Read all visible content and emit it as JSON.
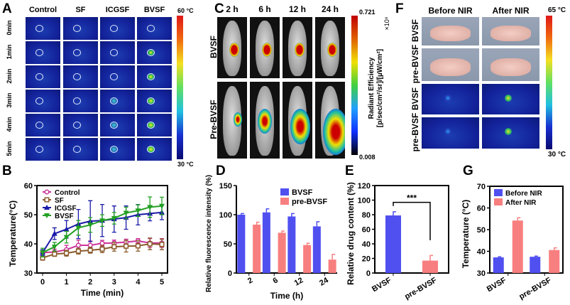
{
  "panels": {
    "A": {
      "label": "A",
      "columns": [
        "Control",
        "SF",
        "ICGSF",
        "BVSF"
      ],
      "rows": [
        "0min",
        "1min",
        "2min",
        "3min",
        "4min",
        "5min"
      ],
      "colorbar_max": "60 °C",
      "colorbar_min": "30 °C"
    },
    "C": {
      "label": "C",
      "columns": [
        "2 h",
        "6 h",
        "12 h",
        "24 h"
      ],
      "rows": [
        "BVSF",
        "Pre-BVSF"
      ],
      "colorbar_max": "0.721",
      "colorbar_min": "0.008",
      "colorbar_title": "Radiant Efficiency",
      "colorbar_units": "[p/sec/cm²/sr]/[µW/cm²]",
      "colorbar_scale": "×10⁸"
    },
    "F": {
      "label": "F",
      "columns": [
        "Before NIR",
        "After NIR"
      ],
      "rows": [
        "BVSF",
        "pre-BVSF",
        "BVSF",
        "pre-BVSF"
      ],
      "colorbar_max": "65 °C",
      "colorbar_min": "30 °C"
    }
  },
  "chart_data": [
    {
      "id": "B",
      "label": "B",
      "type": "line",
      "xlabel": "Time (min)",
      "ylabel": "Temperature(°C)",
      "xlim": [
        0,
        5
      ],
      "ylim": [
        30,
        60
      ],
      "xticks": [
        "0",
        "1",
        "2",
        "3",
        "4",
        "5"
      ],
      "yticks": [
        "30",
        "40",
        "50",
        "60"
      ],
      "legend_position": "top-left",
      "x": [
        0,
        0.5,
        1,
        1.5,
        2,
        2.5,
        3,
        3.5,
        4,
        4.5,
        5
      ],
      "series": [
        {
          "name": "Control",
          "color": "#cc3399",
          "marker": "circle",
          "values": [
            37,
            37.2,
            38,
            39.5,
            39.5,
            40.2,
            40.3,
            40.6,
            41,
            40.3,
            40.3
          ],
          "errors": [
            1,
            1,
            1.5,
            1.8,
            1.5,
            1,
            1,
            1,
            0.8,
            1.5,
            1.5
          ]
        },
        {
          "name": "SF",
          "color": "#8b5a2b",
          "marker": "square",
          "values": [
            35.2,
            36.5,
            36.8,
            37.5,
            37.8,
            38.2,
            39,
            39.2,
            39.3,
            40,
            39.8
          ],
          "errors": [
            0.8,
            0.8,
            1,
            1,
            1,
            1.2,
            1.5,
            2,
            1.8,
            2,
            1.8
          ]
        },
        {
          "name": "ICGSF",
          "color": "#1a1aa8",
          "marker": "triangle-up",
          "values": [
            37,
            43.5,
            45,
            46.8,
            47.8,
            48,
            48.5,
            49,
            50,
            50.4,
            50.8
          ],
          "errors": [
            1,
            2,
            3,
            5,
            7,
            5.5,
            4.5,
            4,
            3.5,
            2.5,
            2.5
          ]
        },
        {
          "name": "BVSF",
          "color": "#22a022",
          "marker": "triangle-down",
          "values": [
            37,
            39,
            42.3,
            45.5,
            46.5,
            48,
            48.8,
            50.6,
            51.4,
            52.6,
            53
          ],
          "errors": [
            1.5,
            1.5,
            2,
            2.5,
            2.5,
            2,
            2,
            2,
            2,
            3.5,
            3
          ]
        }
      ]
    },
    {
      "id": "D",
      "label": "D",
      "type": "bar",
      "xlabel": "Time (h)",
      "ylabel": "Relative fluorescence intensity (%)",
      "ylim": [
        0,
        150
      ],
      "yticks": [
        "0",
        "50",
        "100",
        "150"
      ],
      "categories": [
        "2",
        "6",
        "12",
        "24"
      ],
      "legend_position": "top-right",
      "series": [
        {
          "name": "BVSF",
          "color": "#5050f0",
          "values": [
            100,
            104,
            97,
            80
          ],
          "errors": [
            2,
            6,
            5,
            8
          ]
        },
        {
          "name": "pre-BVSF",
          "color": "#f87f7f",
          "values": [
            83,
            69,
            48,
            23
          ],
          "errors": [
            4,
            3,
            3,
            9
          ]
        }
      ]
    },
    {
      "id": "E",
      "label": "E",
      "type": "bar",
      "xlabel": "",
      "ylabel": "Relative drug content (%)",
      "ylim": [
        0,
        120
      ],
      "yticks": [
        "0",
        "20",
        "40",
        "60",
        "80",
        "100",
        "120"
      ],
      "categories": [
        "BVSF",
        "pre-BVSF"
      ],
      "annotation": "***",
      "series": [
        {
          "name": "",
          "colors": [
            "#5050f0",
            "#f87f7f"
          ],
          "values": [
            79,
            17
          ],
          "errors": [
            5,
            7
          ]
        }
      ]
    },
    {
      "id": "G",
      "label": "G",
      "type": "bar",
      "xlabel": "",
      "ylabel": "Temperature (°C)",
      "ylim": [
        30,
        70
      ],
      "yticks": [
        "30",
        "40",
        "50",
        "60",
        "70"
      ],
      "categories": [
        "BVSF",
        "pre-BVSF"
      ],
      "legend_position": "top-left",
      "series": [
        {
          "name": "Before NIR",
          "color": "#5050f0",
          "values": [
            37.2,
            37.5
          ],
          "errors": [
            0.3,
            0.3
          ]
        },
        {
          "name": "After NIR",
          "color": "#f87f7f",
          "values": [
            54.2,
            40.6
          ],
          "errors": [
            1.3,
            1
          ]
        }
      ]
    }
  ]
}
